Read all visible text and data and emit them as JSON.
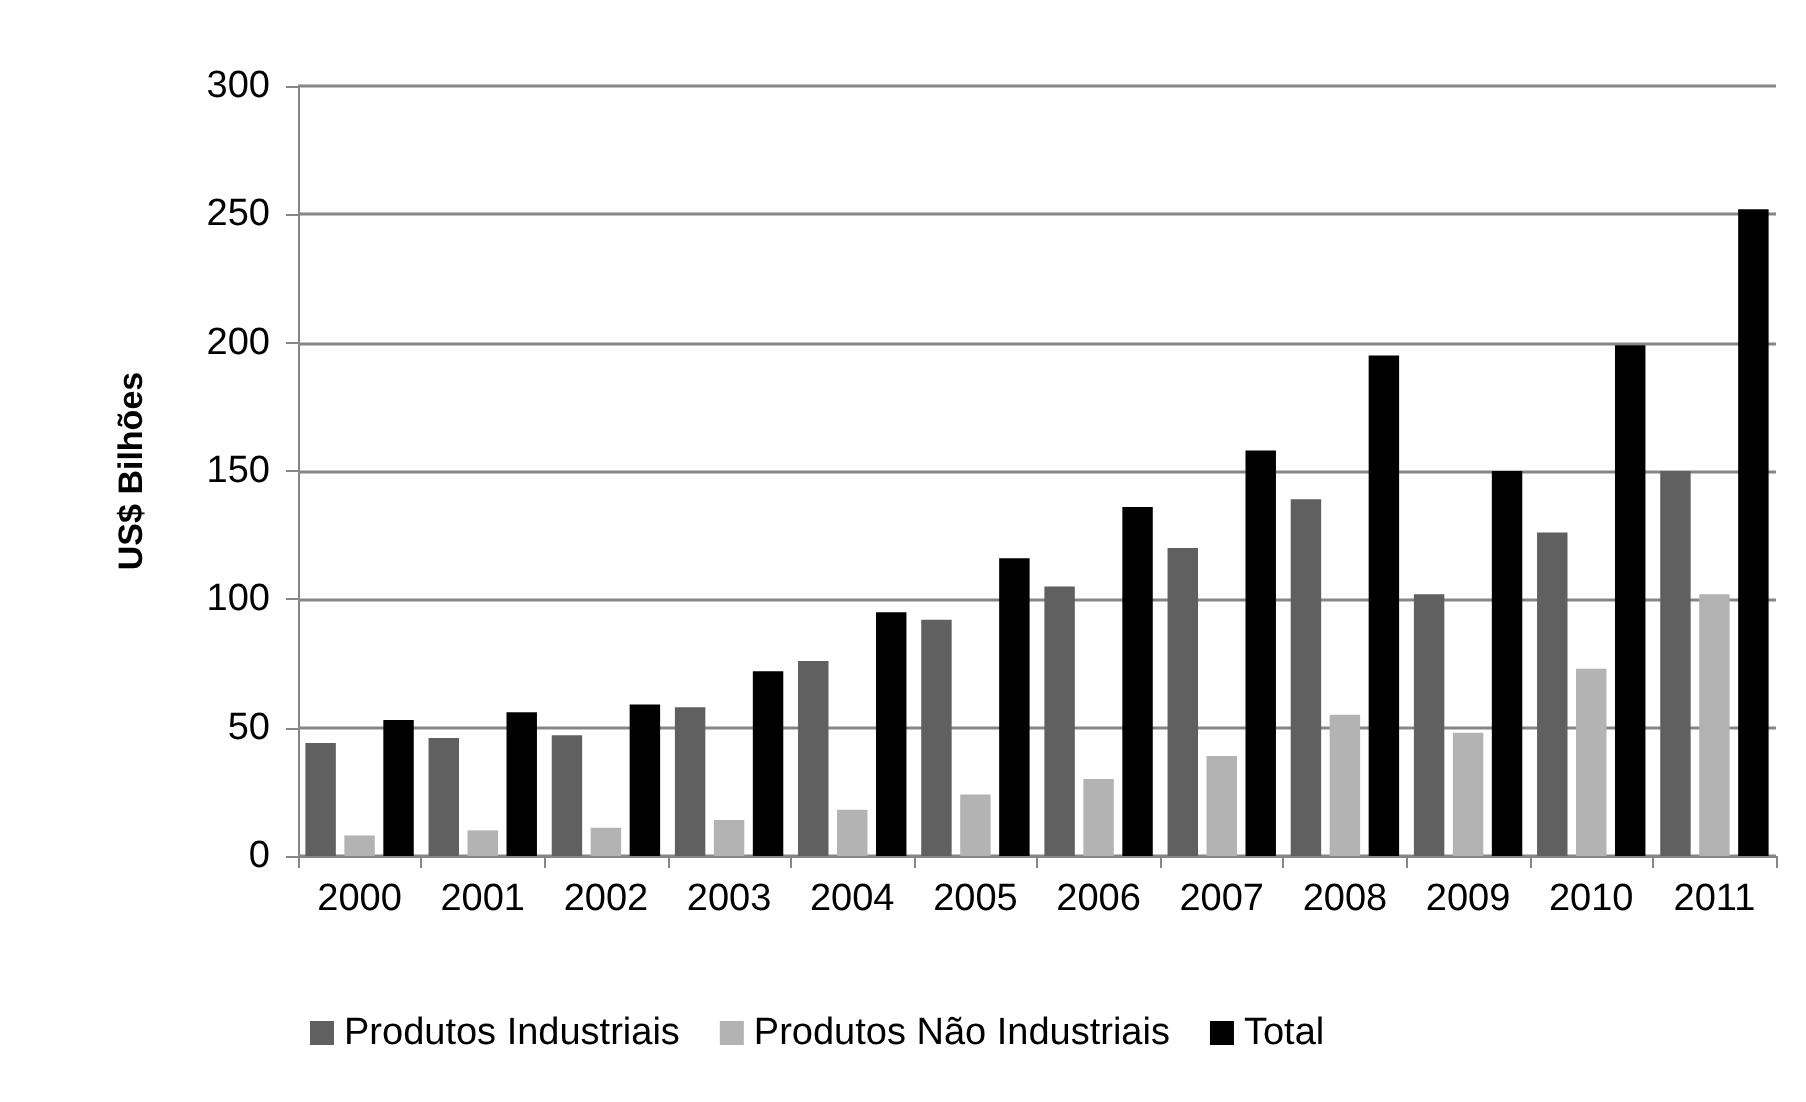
{
  "chart_data": {
    "type": "bar",
    "ylabel": "US$ Bilhões",
    "categories": [
      "2000",
      "2001",
      "2002",
      "2003",
      "2004",
      "2005",
      "2006",
      "2007",
      "2008",
      "2009",
      "2010",
      "2011"
    ],
    "series": [
      {
        "name": "Produtos Industriais",
        "color": "#606060",
        "values": [
          44,
          46,
          47,
          58,
          76,
          92,
          105,
          120,
          139,
          102,
          126,
          150
        ]
      },
      {
        "name": "Produtos Não Industriais",
        "color": "#b3b3b3",
        "values": [
          8,
          10,
          11,
          14,
          18,
          24,
          30,
          39,
          55,
          48,
          73,
          102
        ]
      },
      {
        "name": "Total",
        "color": "#000000",
        "values": [
          53,
          56,
          59,
          72,
          95,
          116,
          136,
          158,
          195,
          150,
          199,
          252
        ]
      }
    ],
    "ylim": [
      0,
      300
    ],
    "yticks": [
      0,
      50,
      100,
      150,
      200,
      250,
      300
    ],
    "grid": "y",
    "legend": "bottom"
  }
}
